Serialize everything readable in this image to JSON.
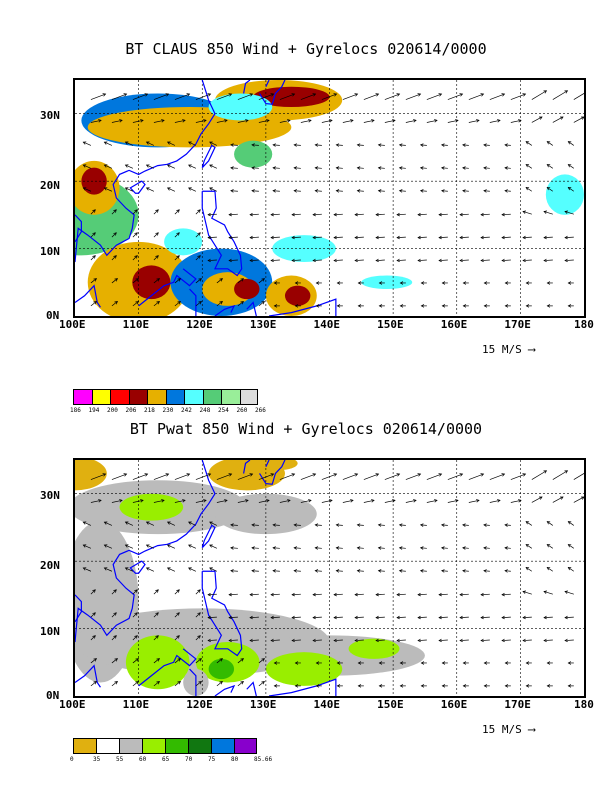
{
  "panels": [
    {
      "title": "BT CLAUS 850 Wind + Gyrelocs 020614/0000",
      "lat_labels": [
        "30N",
        "20N",
        "10N",
        "0N"
      ],
      "lon_labels": [
        "100E",
        "110E",
        "120E",
        "130E",
        "140E",
        "150E",
        "160E",
        "170E",
        "180"
      ],
      "wind_ref": "15 M/S",
      "colorbar": {
        "colors": [
          "#ff00ff",
          "#ffff00",
          "#ff0000",
          "#990000",
          "#e6b000",
          "#0077dd",
          "#55ffff",
          "#55cc77",
          "#99ee99",
          "#dddddd"
        ],
        "labels": [
          "186",
          "194",
          "200",
          "206",
          "218",
          "230",
          "242",
          "248",
          "254",
          "260",
          "266"
        ]
      }
    },
    {
      "title": "BT Pwat 850 Wind + Gyrelocs 020614/0000",
      "lat_labels": [
        "30N",
        "20N",
        "10N",
        "0N"
      ],
      "lon_labels": [
        "100E",
        "110E",
        "120E",
        "130E",
        "140E",
        "150E",
        "160E",
        "170E",
        "180"
      ],
      "wind_ref": "15 M/S",
      "colorbar": {
        "colors": [
          "#e0b010",
          "#ffffff",
          "#bbbbbb",
          "#99ee00",
          "#33bb00",
          "#117711",
          "#0077dd",
          "#8800cc"
        ],
        "labels": [
          "0",
          "35",
          "55",
          "60",
          "65",
          "70",
          "75",
          "80",
          "85.66"
        ]
      }
    }
  ],
  "colors": {
    "coast": "#0000ff",
    "grid": "#000000"
  }
}
